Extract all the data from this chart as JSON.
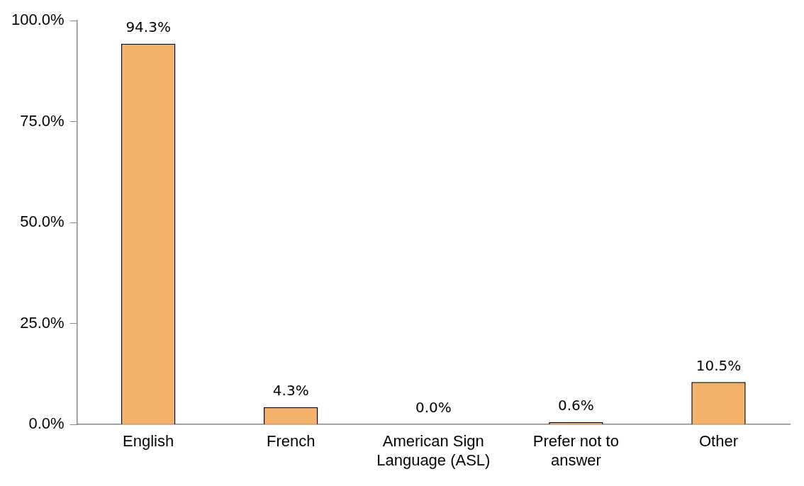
{
  "chart_data": {
    "type": "bar",
    "categories": [
      "English",
      "French",
      "American Sign Language (ASL)",
      "Prefer not to answer",
      "Other"
    ],
    "values": [
      94.3,
      4.3,
      0.0,
      0.6,
      10.5
    ],
    "value_labels": [
      "94.3%",
      "4.3%",
      "0.0%",
      "0.6%",
      "10.5%"
    ],
    "color": "#f5b26b",
    "ylim": [
      0,
      100
    ],
    "yticks": [
      {
        "value": 0,
        "label": "0.0%"
      },
      {
        "value": 25,
        "label": "25.0%"
      },
      {
        "value": 50,
        "label": "50.0%"
      },
      {
        "value": 75,
        "label": "75.0%"
      },
      {
        "value": 100,
        "label": "100.0%"
      }
    ],
    "grid": false,
    "legend": false
  }
}
